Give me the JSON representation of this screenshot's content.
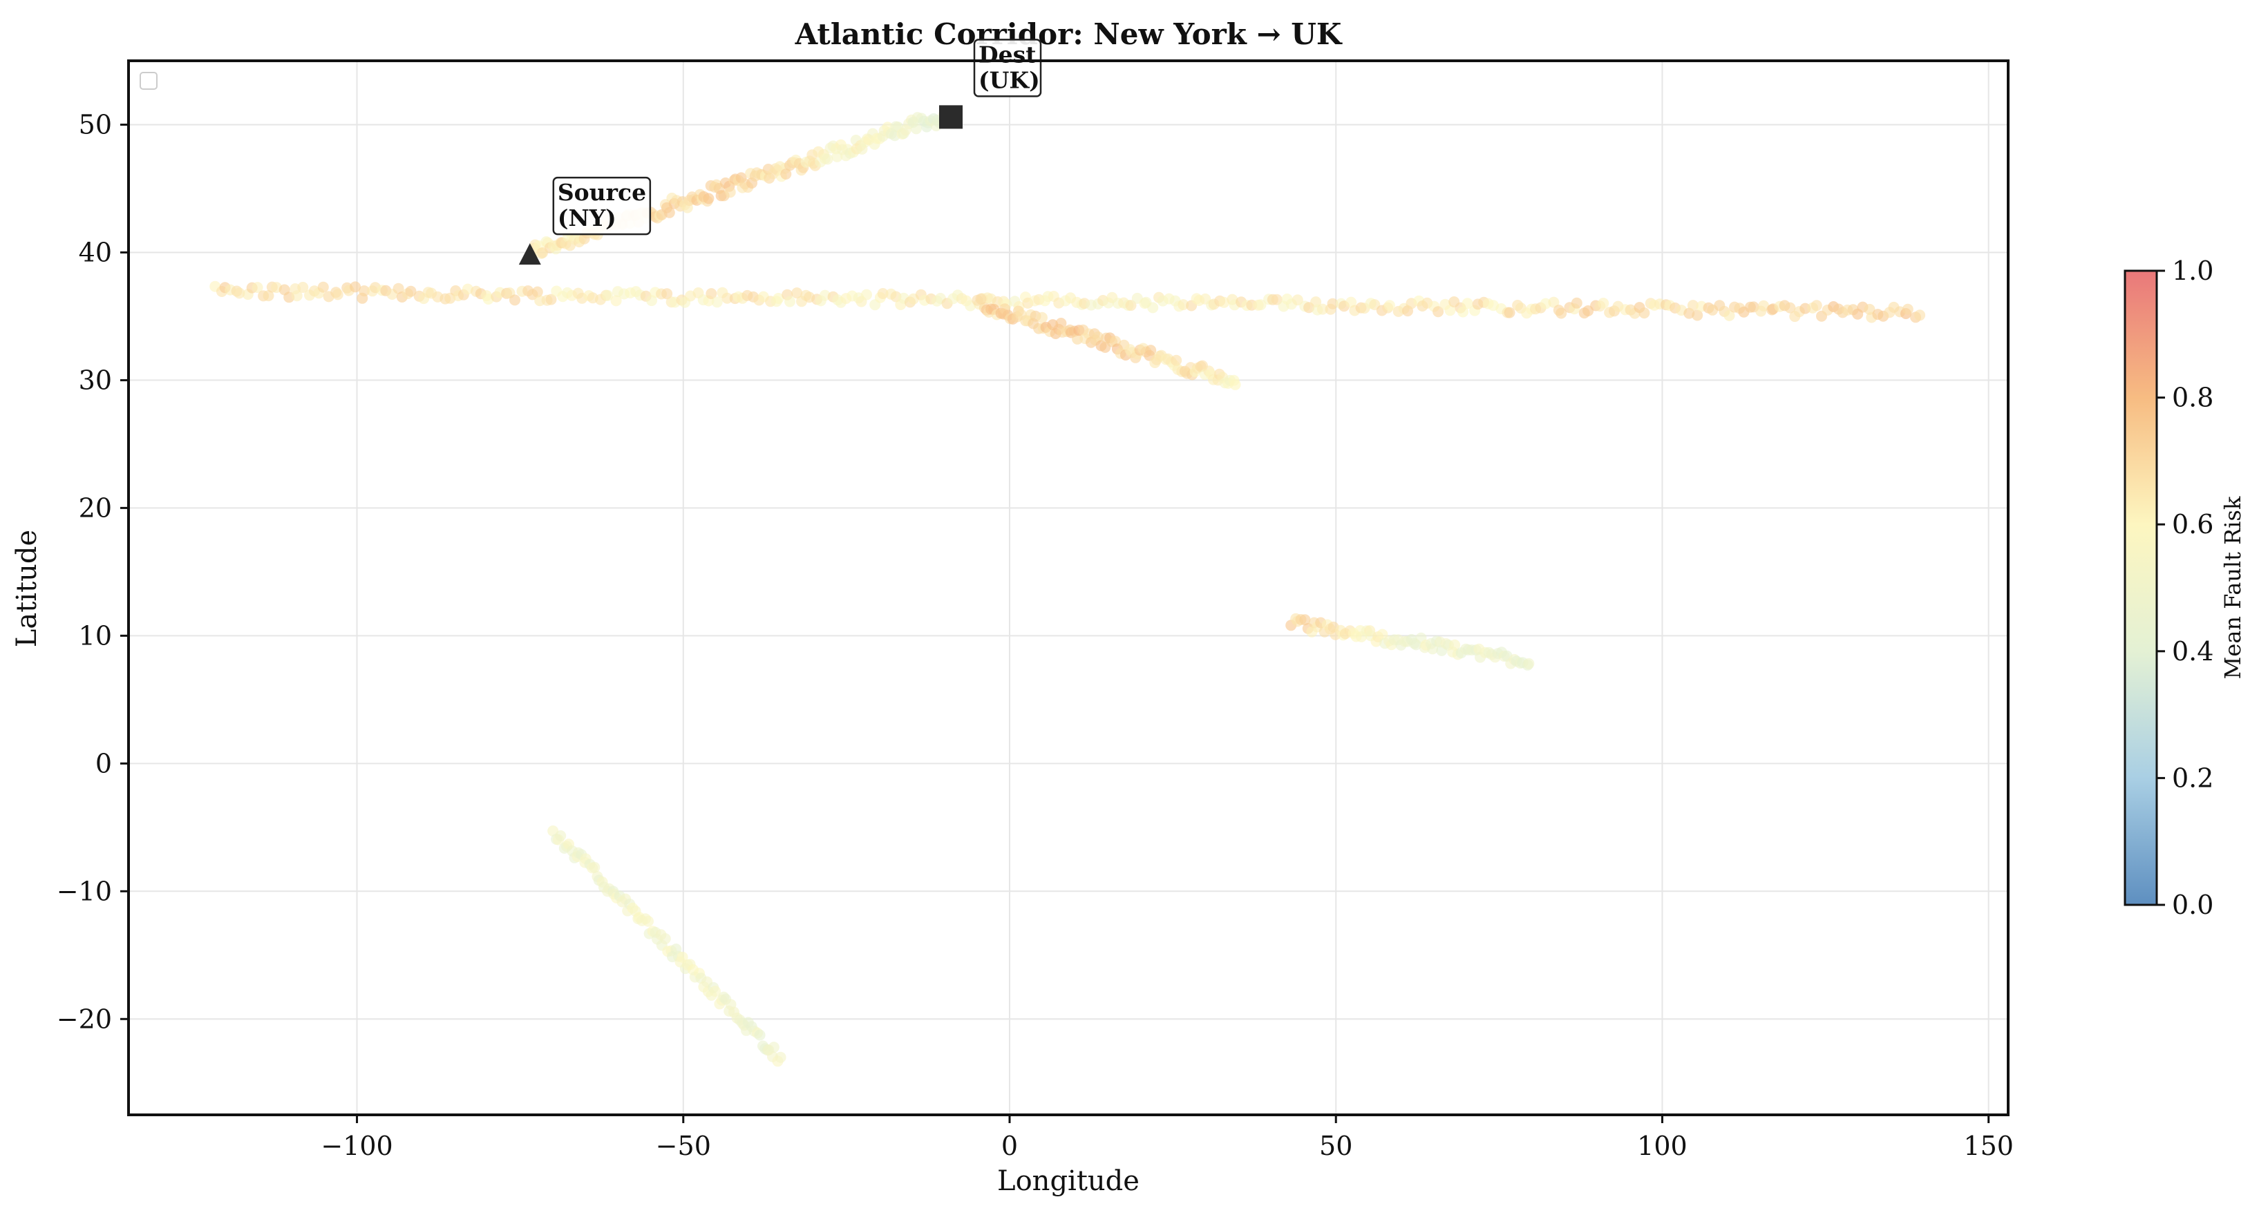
{
  "chart_data": {
    "type": "scatter",
    "title": "Atlantic Corridor: New York → UK",
    "xlabel": "Longitude",
    "ylabel": "Latitude",
    "xlim": [
      -135,
      153
    ],
    "ylim": [
      -27.5,
      55
    ],
    "xticks": [
      -100,
      -50,
      0,
      50,
      100,
      150
    ],
    "yticks": [
      -20,
      -10,
      0,
      10,
      20,
      30,
      40,
      50
    ],
    "xtick_labels": [
      "−100",
      "−50",
      "0",
      "50",
      "100",
      "150"
    ],
    "ytick_labels": [
      "−20",
      "−10",
      "0",
      "10",
      "20",
      "30",
      "40",
      "50"
    ],
    "grid": true,
    "legend": "top-left, empty",
    "colorbar": {
      "label": "Mean Fault Risk",
      "range": [
        0,
        1
      ],
      "ticks": [
        0.0,
        0.2,
        0.4,
        0.6,
        0.8,
        1.0
      ],
      "tick_labels": [
        "0.0",
        "0.2",
        "0.4",
        "0.6",
        "0.8",
        "1.0"
      ],
      "colormap": "RdYlBu_r",
      "colors": [
        "#5e8fc0",
        "#a9cfe4",
        "#e4f1d4",
        "#fdf6c0",
        "#f7bc82",
        "#e9787a"
      ]
    },
    "segments": [
      {
        "from": [
          -73.5,
          40.0
        ],
        "to": [
          -10,
          50.7
        ],
        "count": 170,
        "risk": [
          0.62,
          0.72,
          0.45
        ],
        "jitter": 0.6
      },
      {
        "from": [
          -122,
          37.0
        ],
        "to": [
          140,
          35.3
        ],
        "count": 330,
        "risk": [
          0.68,
          0.6,
          0.72
        ],
        "jitter": 0.45
      },
      {
        "from": [
          -5,
          36.0
        ],
        "to": [
          35,
          29.8
        ],
        "count": 95,
        "risk": [
          0.72,
          0.74,
          0.6
        ],
        "jitter": 0.5
      },
      {
        "from": [
          43,
          11.0
        ],
        "to": [
          80,
          8.0
        ],
        "count": 75,
        "risk": [
          0.72,
          0.5,
          0.48
        ],
        "jitter": 0.45
      },
      {
        "from": [
          -70,
          -5.3
        ],
        "to": [
          -35,
          -23.2
        ],
        "count": 90,
        "risk": [
          0.5,
          0.52,
          0.5
        ],
        "jitter": 0.45
      }
    ],
    "markers": [
      {
        "name": "Source",
        "label_line1": "Source",
        "label_line2": "(NY)",
        "x": -73.5,
        "y": 39.8,
        "shape": "triangle"
      },
      {
        "name": "Dest",
        "label_line1": "Dest",
        "label_line2": "(UK)",
        "x": -9,
        "y": 50.6,
        "shape": "square"
      }
    ]
  }
}
